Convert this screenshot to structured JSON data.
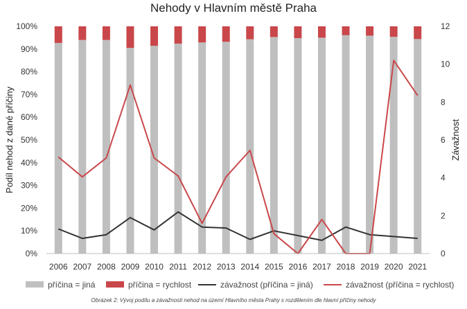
{
  "chart_data": {
    "type": "bar",
    "title": "Nehody v Hlavním městě Praha",
    "caption": "Obrázek 2: Vývoj podílu a závažnosti nehod na území Hlavního města Prahy s rozdělením dle hlavní příčiny nehody",
    "categories": [
      "2006",
      "2007",
      "2008",
      "2009",
      "2010",
      "2011",
      "2012",
      "2013",
      "2014",
      "2015",
      "2016",
      "2017",
      "2018",
      "2019",
      "2020",
      "2021"
    ],
    "y_left": {
      "label": "Podíl nehod z dané příčiny",
      "ticks": [
        "0%",
        "10%",
        "20%",
        "30%",
        "40%",
        "50%",
        "60%",
        "70%",
        "80%",
        "90%",
        "100%"
      ],
      "ylim": [
        0,
        100
      ]
    },
    "y_right": {
      "label": "Závažnost",
      "ticks": [
        "0",
        "2",
        "4",
        "6",
        "8",
        "10",
        "12"
      ],
      "ylim": [
        0,
        12
      ]
    },
    "series": [
      {
        "name": "příčina = jiná",
        "type": "bar-stacked",
        "axis": "left",
        "color": "#bfbfbf",
        "values": [
          92.7,
          94.0,
          94.0,
          90.5,
          91.4,
          92.4,
          92.9,
          93.2,
          94.3,
          95.3,
          94.8,
          95.0,
          96.1,
          95.9,
          95.4,
          94.4
        ]
      },
      {
        "name": "příčina = rychlost",
        "type": "bar-stacked",
        "axis": "left",
        "color": "#c9474a",
        "values": [
          7.3,
          6.0,
          6.0,
          9.5,
          8.6,
          7.6,
          7.1,
          6.8,
          5.7,
          4.7,
          5.2,
          5.0,
          3.9,
          4.1,
          4.6,
          5.6
        ]
      },
      {
        "name": "závažnost (příčina = jiná)",
        "type": "line",
        "axis": "right",
        "color": "#333333",
        "values": [
          1.3,
          0.8,
          1.0,
          1.9,
          1.25,
          2.2,
          1.4,
          1.35,
          0.75,
          1.2,
          0.95,
          0.7,
          1.4,
          1.0,
          0.9,
          0.8
        ]
      },
      {
        "name": "závažnost (příčina = rychlost)",
        "type": "line",
        "axis": "right",
        "color": "#c9474a",
        "values": [
          5.1,
          4.05,
          5.05,
          8.9,
          5.05,
          4.1,
          1.6,
          4.05,
          5.45,
          1.05,
          0.0,
          1.8,
          0.0,
          0.0,
          10.2,
          8.35
        ]
      }
    ],
    "grid": false,
    "legend_position": "bottom"
  }
}
